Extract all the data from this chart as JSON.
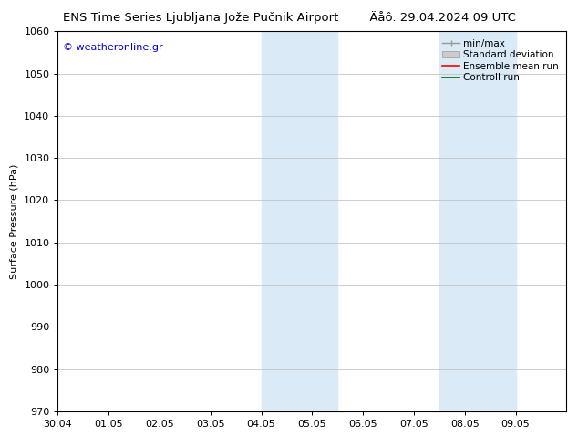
{
  "title_left": "ENS Time Series Ljubljana Jože Pučnik Airport",
  "title_right": "Äåô. 29.04.2024 09 UTC",
  "ylabel": "Surface Pressure (hPa)",
  "watermark": "© weatheronline.gr",
  "watermark_color": "#0000dd",
  "ylim": [
    970,
    1060
  ],
  "yticks": [
    970,
    980,
    990,
    1000,
    1010,
    1020,
    1030,
    1040,
    1050,
    1060
  ],
  "xlim": [
    0,
    10
  ],
  "x_tick_positions": [
    0,
    1,
    2,
    3,
    4,
    5,
    6,
    7,
    8,
    9
  ],
  "x_tick_labels": [
    "30.04",
    "01.05",
    "02.05",
    "03.05",
    "04.05",
    "05.05",
    "06.05",
    "07.05",
    "08.05",
    "09.05"
  ],
  "shaded_bands": [
    {
      "x_start": 4.0,
      "x_end": 5.5
    },
    {
      "x_start": 7.5,
      "x_end": 9.0
    }
  ],
  "shade_color": "#daeaf7",
  "bg_color": "#ffffff",
  "grid_color": "#bbbbbb",
  "title_fontsize": 9.5,
  "tick_fontsize": 8,
  "ylabel_fontsize": 8,
  "legend_fontsize": 7.5,
  "watermark_fontsize": 8
}
